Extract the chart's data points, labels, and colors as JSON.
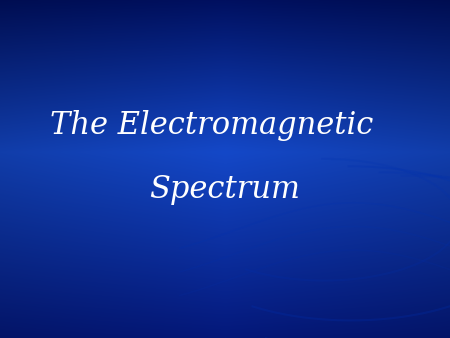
{
  "title_line1": "The Electromagnetic",
  "title_line2": "Spectrum",
  "text_color": "#ffffff",
  "font_size": 22,
  "fig_width": 4.5,
  "fig_height": 3.38,
  "dpi": 100,
  "bg_top": "#001060",
  "bg_mid": "#1448c8",
  "bg_bot": "#0a1a80",
  "wave_color": "#0030b0",
  "wave_alpha": 0.35
}
